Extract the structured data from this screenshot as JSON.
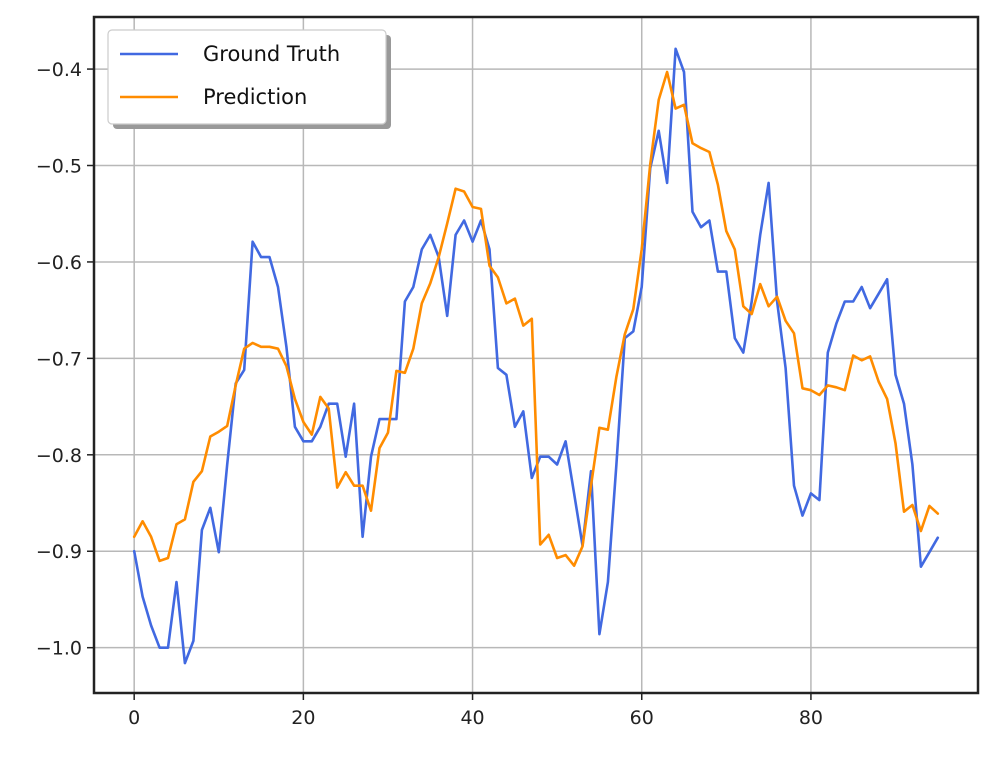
{
  "chart_data": {
    "type": "line",
    "title": "",
    "xlabel": "",
    "ylabel": "",
    "xlim": [
      -4.75,
      99.75
    ],
    "ylim": [
      -1.047,
      -0.346
    ],
    "x_ticks": [
      0,
      20,
      40,
      60,
      80
    ],
    "x_tick_labels": [
      "0",
      "20",
      "40",
      "60",
      "80"
    ],
    "y_ticks": [
      -0.4,
      -0.5,
      -0.6,
      -0.7,
      -0.8,
      -0.9,
      -1.0
    ],
    "y_tick_labels": [
      "−0.4",
      "−0.5",
      "−0.6",
      "−0.7",
      "−0.8",
      "−0.9",
      "−1.0"
    ],
    "grid": true,
    "legend_position": "top-left",
    "series": [
      {
        "name": "Ground Truth",
        "color": "#4169E1",
        "values": [
          -0.9,
          -0.947,
          -0.977,
          -1.0,
          -1.0,
          -0.932,
          -1.016,
          -0.993,
          -0.878,
          -0.855,
          -0.901,
          -0.81,
          -0.726,
          -0.712,
          -0.579,
          -0.595,
          -0.595,
          -0.626,
          -0.688,
          -0.771,
          -0.786,
          -0.786,
          -0.771,
          -0.747,
          -0.747,
          -0.802,
          -0.747,
          -0.885,
          -0.802,
          -0.763,
          -0.763,
          -0.763,
          -0.641,
          -0.626,
          -0.587,
          -0.572,
          -0.595,
          -0.656,
          -0.572,
          -0.557,
          -0.579,
          -0.557,
          -0.587,
          -0.71,
          -0.717,
          -0.771,
          -0.755,
          -0.824,
          -0.802,
          -0.802,
          -0.81,
          -0.786,
          -0.84,
          -0.894,
          -0.817,
          -0.986,
          -0.932,
          -0.81,
          -0.679,
          -0.672,
          -0.626,
          -0.503,
          -0.464,
          -0.518,
          -0.379,
          -0.403,
          -0.548,
          -0.564,
          -0.557,
          -0.61,
          -0.61,
          -0.679,
          -0.694,
          -0.641,
          -0.572,
          -0.518,
          -0.641,
          -0.71,
          -0.832,
          -0.863,
          -0.84,
          -0.847,
          -0.694,
          -0.664,
          -0.641,
          -0.641,
          -0.626,
          -0.648,
          -0.633,
          -0.618,
          -0.717,
          -0.747,
          -0.81,
          -0.916,
          -0.901,
          -0.886
        ]
      },
      {
        "name": "Prediction",
        "color": "#FF8C00",
        "values": [
          -0.885,
          -0.869,
          -0.885,
          -0.91,
          -0.907,
          -0.872,
          -0.867,
          -0.828,
          -0.817,
          -0.781,
          -0.776,
          -0.77,
          -0.728,
          -0.69,
          -0.684,
          -0.688,
          -0.688,
          -0.69,
          -0.708,
          -0.742,
          -0.766,
          -0.779,
          -0.74,
          -0.752,
          -0.834,
          -0.818,
          -0.832,
          -0.832,
          -0.858,
          -0.793,
          -0.777,
          -0.713,
          -0.715,
          -0.69,
          -0.643,
          -0.622,
          -0.595,
          -0.56,
          -0.524,
          -0.527,
          -0.543,
          -0.545,
          -0.604,
          -0.616,
          -0.643,
          -0.638,
          -0.666,
          -0.659,
          -0.893,
          -0.883,
          -0.907,
          -0.904,
          -0.915,
          -0.895,
          -0.832,
          -0.772,
          -0.774,
          -0.719,
          -0.675,
          -0.649,
          -0.587,
          -0.499,
          -0.432,
          -0.403,
          -0.441,
          -0.437,
          -0.477,
          -0.482,
          -0.486,
          -0.52,
          -0.568,
          -0.587,
          -0.646,
          -0.654,
          -0.623,
          -0.646,
          -0.636,
          -0.661,
          -0.674,
          -0.731,
          -0.733,
          -0.738,
          -0.728,
          -0.73,
          -0.733,
          -0.697,
          -0.702,
          -0.698,
          -0.724,
          -0.742,
          -0.788,
          -0.859,
          -0.852,
          -0.879,
          -0.853,
          -0.861
        ]
      }
    ]
  }
}
